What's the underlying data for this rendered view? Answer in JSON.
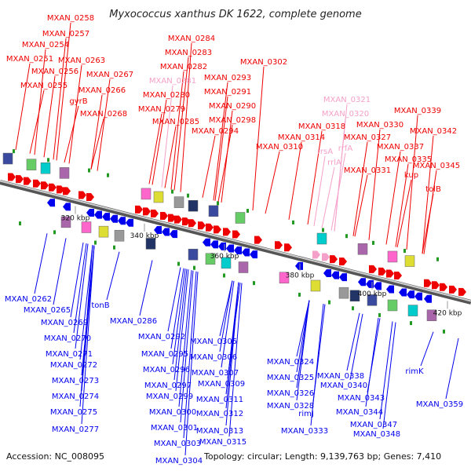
{
  "title": "Myxococcus xanthus DK 1622, complete genome",
  "footer": {
    "accession": "Accession: NC_008095",
    "summary": "Topology: circular; Length: 9,139,763 bp; Genes: 7,410"
  },
  "colors": {
    "forward": "#ee0000",
    "reverse": "#0000ee",
    "rna": "#f4a0c8",
    "backbone": "#888888"
  },
  "ticks": [
    "320 kbp",
    "340 kbp",
    "360 kbp",
    "380 kbp",
    "400 kbp",
    "420 kbp"
  ],
  "forward_labels": [
    {
      "text": "MXAN_0258",
      "kind": "cds"
    },
    {
      "text": "MXAN_0257",
      "kind": "cds"
    },
    {
      "text": "MXAN_0254",
      "kind": "cds"
    },
    {
      "text": "MXAN_0251",
      "kind": "cds"
    },
    {
      "text": "MXAN_0263",
      "kind": "cds"
    },
    {
      "text": "MXAN_0256",
      "kind": "cds"
    },
    {
      "text": "MXAN_0255",
      "kind": "cds"
    },
    {
      "text": "MXAN_0267",
      "kind": "cds"
    },
    {
      "text": "MXAN_0266",
      "kind": "cds"
    },
    {
      "text": "gyrB",
      "kind": "cds"
    },
    {
      "text": "MXAN_0268",
      "kind": "cds"
    },
    {
      "text": "MXAN_0284",
      "kind": "cds"
    },
    {
      "text": "MXAN_0283",
      "kind": "cds"
    },
    {
      "text": "MXAN_0282",
      "kind": "cds"
    },
    {
      "text": "MXAN_0281",
      "kind": "rna"
    },
    {
      "text": "MXAN_0280",
      "kind": "cds"
    },
    {
      "text": "MXAN_0279",
      "kind": "cds"
    },
    {
      "text": "MXAN_0285",
      "kind": "cds"
    },
    {
      "text": "MXAN_0293",
      "kind": "cds"
    },
    {
      "text": "MXAN_0291",
      "kind": "cds"
    },
    {
      "text": "MXAN_0290",
      "kind": "cds"
    },
    {
      "text": "MXAN_0298",
      "kind": "cds"
    },
    {
      "text": "MXAN_0294",
      "kind": "cds"
    },
    {
      "text": "MXAN_0302",
      "kind": "cds"
    },
    {
      "text": "MXAN_0310",
      "kind": "cds"
    },
    {
      "text": "MXAN_0321",
      "kind": "rna"
    },
    {
      "text": "MXAN_0320",
      "kind": "rna"
    },
    {
      "text": "MXAN_0318",
      "kind": "cds"
    },
    {
      "text": "MXAN_0314",
      "kind": "cds"
    },
    {
      "text": "rrsA",
      "kind": "rna"
    },
    {
      "text": "rrfA",
      "kind": "rna"
    },
    {
      "text": "rrlA",
      "kind": "rna"
    },
    {
      "text": "MXAN_0330",
      "kind": "cds"
    },
    {
      "text": "MXAN_0327",
      "kind": "cds"
    },
    {
      "text": "MXAN_0331",
      "kind": "cds"
    },
    {
      "text": "MXAN_0339",
      "kind": "cds"
    },
    {
      "text": "MXAN_0337",
      "kind": "cds"
    },
    {
      "text": "MXAN_0335",
      "kind": "cds"
    },
    {
      "text": "MXAN_0342",
      "kind": "cds"
    },
    {
      "text": "kup",
      "kind": "cds"
    },
    {
      "text": "MXAN_0345",
      "kind": "cds"
    },
    {
      "text": "tolB",
      "kind": "cds"
    }
  ],
  "reverse_labels": [
    "MXAN_0262",
    "MXAN_0265",
    "tonB",
    "MXAN_0269",
    "MXAN_0270",
    "MXAN_0271",
    "MXAN_0272",
    "MXAN_0273",
    "MXAN_0274",
    "MXAN_0275",
    "MXAN_0277",
    "MXAN_0286",
    "MXAN_0292",
    "MXAN_0295",
    "MXAN_0296",
    "MXAN_0297",
    "MXAN_0299",
    "MXAN_0300",
    "MXAN_0301",
    "MXAN_0303",
    "MXAN_0304",
    "MXAN_0305",
    "MXAN_0306",
    "MXAN_0307",
    "MXAN_0309",
    "MXAN_0311",
    "MXAN_0312",
    "MXAN_0313",
    "MXAN_0315",
    "MXAN_0324",
    "MXAN_0325",
    "MXAN_0326",
    "MXAN_0328",
    "rimJ",
    "MXAN_0333",
    "MXAN_0338",
    "MXAN_0340",
    "rimK",
    "MXAN_0343",
    "MXAN_0344",
    "MXAN_0347",
    "MXAN_0348",
    "MXAN_0359"
  ]
}
